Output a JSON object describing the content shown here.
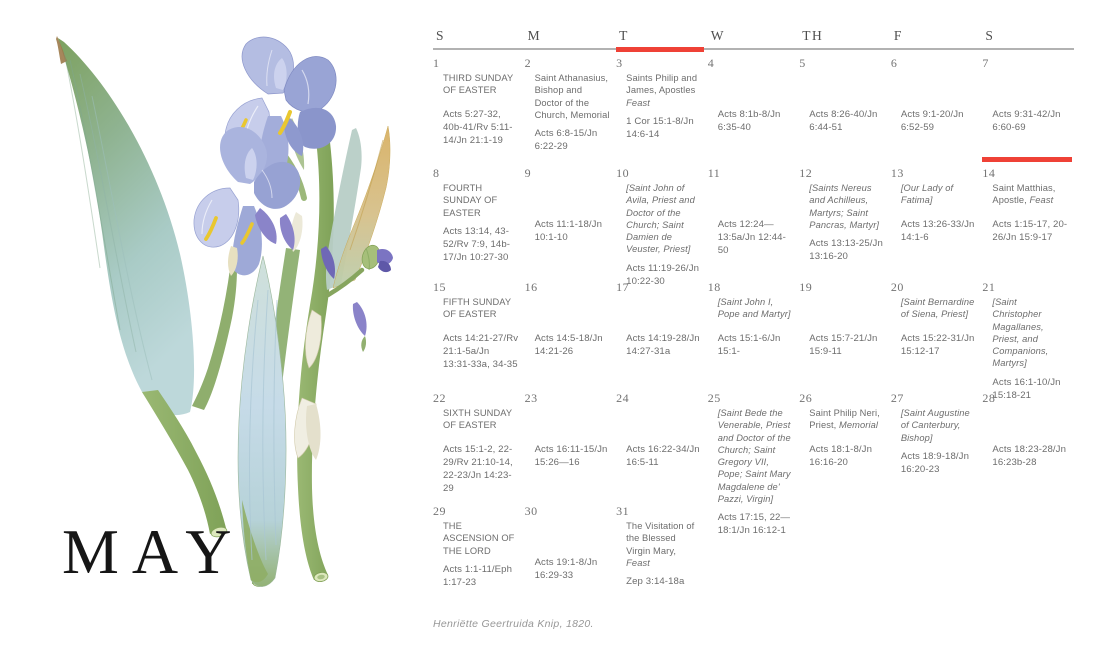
{
  "page": {
    "month_label": "MAY",
    "artwork_name": "blue-iris-watercolor",
    "artwork_credit": "Henriëtte Geertruida Knip, 1820.",
    "accent_red": "#ef4136",
    "rule_gray": "#b2b2b2"
  },
  "calendar": {
    "weekday_headers": [
      "S",
      "M",
      "T",
      "W",
      "TH",
      "F",
      "S"
    ],
    "highlighted_weekday_index": 2,
    "highlighted_day": "14",
    "days": [
      {
        "num": "1",
        "title": [
          {
            "t": "THIRD SUNDAY OF EASTER"
          }
        ],
        "reading": "Acts 5:27-32, 40b-41/Rv 5:11-14/Jn 21:1-19"
      },
      {
        "num": "2",
        "title": [
          {
            "t": "Saint Athanasius, Bishop and Doctor of the Church, Memorial"
          }
        ],
        "reading": "Acts 6:8-15/Jn 6:22-29"
      },
      {
        "num": "3",
        "title": [
          {
            "t": "Saints Philip and James, Apostles "
          },
          {
            "t": "Feast",
            "i": 1
          }
        ],
        "reading": "1 Cor 15:1-8/Jn 14:6-14"
      },
      {
        "num": "4",
        "title": [],
        "reading": "Acts 8:1b-8/Jn 6:35-40"
      },
      {
        "num": "5",
        "title": [],
        "reading": "Acts 8:26-40/Jn 6:44-51"
      },
      {
        "num": "6",
        "title": [],
        "reading": "Acts 9:1-20/Jn 6:52-59"
      },
      {
        "num": "7",
        "title": [],
        "reading": "Acts 9:31-42/Jn 6:60-69"
      },
      {
        "num": "8",
        "title": [
          {
            "t": "FOURTH SUNDAY OF EASTER"
          }
        ],
        "reading": "Acts 13:14, 43-52/Rv 7:9, 14b-17/Jn 10:27-30"
      },
      {
        "num": "9",
        "title": [],
        "reading": "Acts 11:1-18/Jn 10:1-10"
      },
      {
        "num": "10",
        "title": [
          {
            "t": "[Saint John of Avila, Priest and Doctor of the Church; Saint Damien de Veuster, Priest]",
            "i": 1
          }
        ],
        "reading": "Acts 11:19-26/Jn 10:22-30"
      },
      {
        "num": "11",
        "title": [],
        "reading": "Acts 12:24—13:5a/Jn 12:44-50"
      },
      {
        "num": "12",
        "title": [
          {
            "t": "[Saints Nereus and Achilleus, Martyrs; Saint Pancras, Martyr]",
            "i": 1
          }
        ],
        "reading": "Acts 13:13-25/Jn 13:16-20"
      },
      {
        "num": "13",
        "title": [
          {
            "t": "[Our Lady of Fatima]",
            "i": 1
          }
        ],
        "reading": "Acts 13:26-33/Jn 14:1-6"
      },
      {
        "num": "14",
        "red_bar": true,
        "title": [
          {
            "t": "Saint Matthias, Apostle, "
          },
          {
            "t": "Feast",
            "i": 1
          }
        ],
        "reading": "Acts 1:15-17, 20-26/Jn 15:9-17"
      },
      {
        "num": "15",
        "title": [
          {
            "t": "FIFTH SUNDAY OF EASTER"
          }
        ],
        "reading": "Acts 14:21-27/Rv 21:1-5a/Jn 13:31-33a, 34-35"
      },
      {
        "num": "16",
        "title": [],
        "reading": "Acts 14:5-18/Jn 14:21-26"
      },
      {
        "num": "17",
        "title": [],
        "reading": "Acts 14:19-28/Jn 14:27-31a"
      },
      {
        "num": "18",
        "title": [
          {
            "t": "[Saint John I, Pope and Martyr]",
            "i": 1
          }
        ],
        "reading": "Acts 15:1-6/Jn 15:1-"
      },
      {
        "num": "19",
        "title": [],
        "reading": "Acts 15:7-21/Jn 15:9-11"
      },
      {
        "num": "20",
        "title": [
          {
            "t": "[Saint Bernardine of Siena, Priest]",
            "i": 1
          }
        ],
        "reading": "Acts 15:22-31/Jn 15:12-17"
      },
      {
        "num": "21",
        "title": [
          {
            "t": "[Saint Christopher Magallanes, Priest, and Companions, Martyrs]",
            "i": 1
          }
        ],
        "reading": "Acts 16:1-10/Jn 15:18-21"
      },
      {
        "num": "22",
        "title": [
          {
            "t": "SIXTH SUNDAY OF EASTER"
          }
        ],
        "reading": "Acts 15:1-2, 22-29/Rv 21:10-14, 22-23/Jn 14:23-29"
      },
      {
        "num": "23",
        "title": [],
        "reading": "Acts 16:11-15/Jn 15:26—16"
      },
      {
        "num": "24",
        "title": [],
        "reading": "Acts 16:22-34/Jn 16:5-11"
      },
      {
        "num": "25",
        "title": [
          {
            "t": "[Saint Bede the Venerable, Priest and Doctor of the Church; Saint Gregory VII, Pope; Saint Mary Magdalene de' Pazzi, Virgin]",
            "i": 1
          }
        ],
        "reading": "Acts 17:15, 22—18:1/Jn 16:12-1"
      },
      {
        "num": "26",
        "title": [
          {
            "t": "Saint Philip Neri, Priest, "
          },
          {
            "t": "Memorial",
            "i": 1
          }
        ],
        "reading": "Acts 18:1-8/Jn 16:16-20"
      },
      {
        "num": "27",
        "title": [
          {
            "t": "[Saint Augustine of Canterbury, Bishop]",
            "i": 1
          }
        ],
        "reading": "Acts 18:9-18/Jn 16:20-23"
      },
      {
        "num": "28",
        "title": [],
        "reading": "Acts 18:23-28/Jn 16:23b-28"
      },
      {
        "num": "29",
        "title": [
          {
            "t": "THE ASCENSION OF THE LORD"
          }
        ],
        "reading": "Acts 1:1-11/Eph 1:17-23"
      },
      {
        "num": "30",
        "title": [],
        "reading": "Acts 19:1-8/Jn 16:29-33"
      },
      {
        "num": "31",
        "title": [
          {
            "t": "The Visitation of the Blessed Virgin Mary, "
          },
          {
            "t": "Feast",
            "i": 1
          }
        ],
        "reading": "Zep 3:14-18a"
      }
    ]
  }
}
